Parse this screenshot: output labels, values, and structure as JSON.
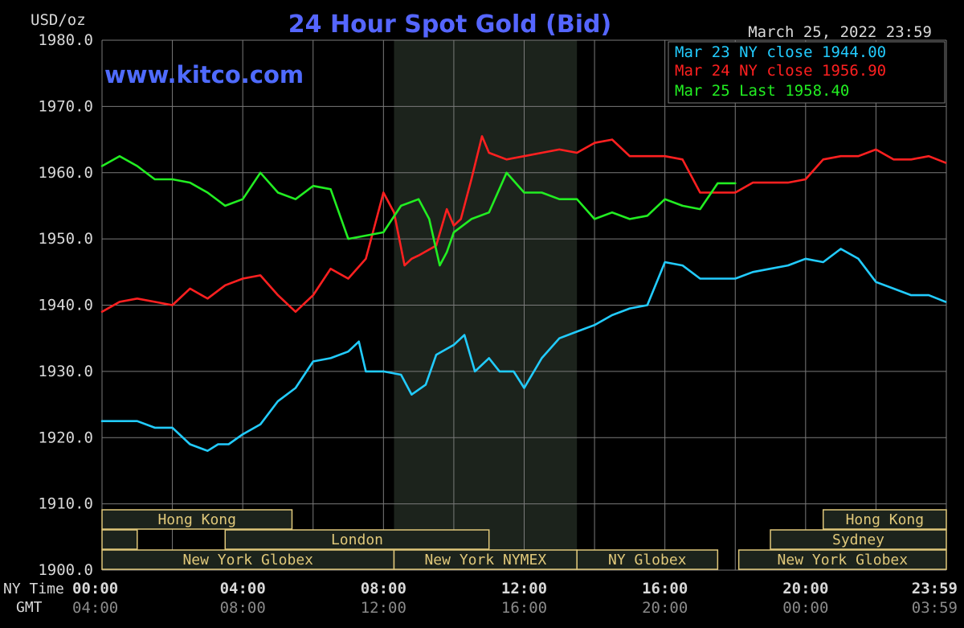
{
  "header": {
    "unit_label": "USD/oz",
    "title": "24 Hour Spot Gold (Bid)",
    "timestamp": "March 25, 2022 23:59",
    "watermark": "www.kitco.com"
  },
  "colors": {
    "background": "#000000",
    "grid": "#7a7a7a",
    "title": "#5566ff",
    "watermark": "#4f6bff",
    "text": "#d9d9d9",
    "mar23": "#22ccff",
    "mar24": "#ff2020",
    "mar25": "#22ee22",
    "session_fill": "#1c231c",
    "session_border": "#e0c87a"
  },
  "sessions": {
    "rows": [
      [
        {
          "label": "Hong Kong",
          "start": 0,
          "end": 5.4
        },
        {
          "label": "Hong Kong",
          "start": 20.5,
          "end": 24
        }
      ],
      [
        {
          "label": "",
          "start": 0,
          "end": 1
        },
        {
          "label": "London",
          "start": 3.5,
          "end": 11
        },
        {
          "label": "Sydney",
          "start": 19,
          "end": 24
        }
      ],
      [
        {
          "label": "New York Globex",
          "start": 0,
          "end": 8.3
        },
        {
          "label": "New York NYMEX",
          "start": 8.3,
          "end": 13.5
        },
        {
          "label": "NY Globex",
          "start": 13.5,
          "end": 17.5
        },
        {
          "label": "New York Globex",
          "start": 18.1,
          "end": 24
        }
      ]
    ]
  },
  "chart_data": {
    "type": "line",
    "title": "24 Hour Spot Gold (Bid)",
    "ylabel": "USD/oz",
    "ylim": [
      1900,
      1980
    ],
    "yticks": [
      "1900.0",
      "1910.0",
      "1920.0",
      "1930.0",
      "1940.0",
      "1950.0",
      "1960.0",
      "1970.0",
      "1980.0"
    ],
    "xlim": [
      0,
      24
    ],
    "x_axis_ny_label": "NY Time",
    "x_axis_gmt_label": "GMT",
    "xticks_ny": [
      "00:00",
      "04:00",
      "08:00",
      "12:00",
      "16:00",
      "20:00",
      "23:59"
    ],
    "xticks_gmt": [
      "04:00",
      "08:00",
      "12:00",
      "16:00",
      "20:00",
      "00:00",
      "03:59"
    ],
    "highlight_range": [
      8.3,
      13.5
    ],
    "grid": true,
    "legend_position": "top-right",
    "legend": [
      "Mar 23 NY close 1944.00",
      "Mar 24 NY close 1956.90",
      "Mar 25 Last 1958.40"
    ],
    "series": [
      {
        "name": "Mar 23 NY close 1944.00",
        "color": "#22ccff",
        "x": [
          0,
          0.5,
          1,
          1.5,
          2,
          2.5,
          3,
          3.3,
          3.6,
          4,
          4.5,
          5,
          5.5,
          6,
          6.5,
          7,
          7.3,
          7.5,
          8,
          8.5,
          8.8,
          9.2,
          9.5,
          10,
          10.3,
          10.6,
          11,
          11.3,
          11.7,
          12,
          12.5,
          13,
          13.5,
          14,
          14.5,
          15,
          15.5,
          16,
          16.5,
          17,
          17.5,
          18,
          18.5,
          19,
          19.5,
          20,
          20.5,
          21,
          21.5,
          22,
          22.5,
          23,
          23.5,
          23.98
        ],
        "y": [
          1922.5,
          1922.5,
          1922.5,
          1921.5,
          1921.5,
          1919,
          1918,
          1919,
          1919,
          1920.5,
          1922,
          1925.5,
          1927.5,
          1931.5,
          1932,
          1933,
          1934.5,
          1930,
          1930,
          1929.5,
          1926.5,
          1928,
          1932.5,
          1934,
          1935.5,
          1930,
          1932,
          1930,
          1930,
          1927.5,
          1932,
          1935,
          1936,
          1937,
          1938.5,
          1939.5,
          1940,
          1946.5,
          1946,
          1944,
          1944,
          1944,
          1945,
          1945.5,
          1946,
          1947,
          1946.5,
          1948.5,
          1947,
          1943.5,
          1942.5,
          1941.5,
          1941.5,
          1940.5
        ]
      },
      {
        "name": "Mar 24 NY close 1956.90",
        "color": "#ff2020",
        "x": [
          0,
          0.5,
          1,
          1.5,
          2,
          2.5,
          3,
          3.5,
          4,
          4.5,
          5,
          5.5,
          6,
          6.5,
          7,
          7.5,
          7.8,
          8,
          8.3,
          8.6,
          8.8,
          9,
          9.5,
          9.8,
          10,
          10.2,
          10.5,
          10.8,
          11,
          11.5,
          12,
          12.5,
          13,
          13.5,
          14,
          14.5,
          15,
          15.5,
          16,
          16.5,
          17,
          17.5,
          18,
          18.5,
          19,
          19.5,
          20,
          20.5,
          21,
          21.5,
          22,
          22.5,
          23,
          23.5,
          23.98
        ],
        "y": [
          1939,
          1940.5,
          1941,
          1940.5,
          1940,
          1942.5,
          1941,
          1943,
          1944,
          1944.5,
          1941.5,
          1939,
          1941.5,
          1945.5,
          1944,
          1947,
          1953,
          1957,
          1954,
          1946,
          1947,
          1947.5,
          1949,
          1954.5,
          1952,
          1953,
          1959,
          1965.5,
          1963,
          1962,
          1962.5,
          1963,
          1963.5,
          1963,
          1964.5,
          1965,
          1962.5,
          1962.5,
          1962.5,
          1962,
          1957,
          1957,
          1957,
          1958.5,
          1958.5,
          1958.5,
          1959,
          1962,
          1962.5,
          1962.5,
          1963.5,
          1962,
          1962,
          1962.5,
          1961.5
        ]
      },
      {
        "name": "Mar 25 Last 1958.40",
        "color": "#22ee22",
        "x": [
          0,
          0.5,
          1,
          1.5,
          2,
          2.5,
          3,
          3.5,
          4,
          4.5,
          5,
          5.5,
          6,
          6.5,
          7,
          7.5,
          8,
          8.5,
          9,
          9.3,
          9.6,
          9.8,
          10,
          10.5,
          11,
          11.5,
          12,
          12.5,
          13,
          13.5,
          14,
          14.5,
          15,
          15.5,
          16,
          16.5,
          17,
          17.5,
          18
        ],
        "y": [
          1961,
          1962.5,
          1961,
          1959,
          1959,
          1958.5,
          1957,
          1955,
          1956,
          1960,
          1957,
          1956,
          1958,
          1957.5,
          1950,
          1950.5,
          1951,
          1955,
          1956,
          1953,
          1946,
          1948,
          1951,
          1953,
          1954,
          1960,
          1957,
          1957,
          1956,
          1956,
          1953,
          1954,
          1953,
          1953.5,
          1956,
          1955,
          1954.5,
          1958.4,
          1958.4
        ]
      }
    ]
  }
}
